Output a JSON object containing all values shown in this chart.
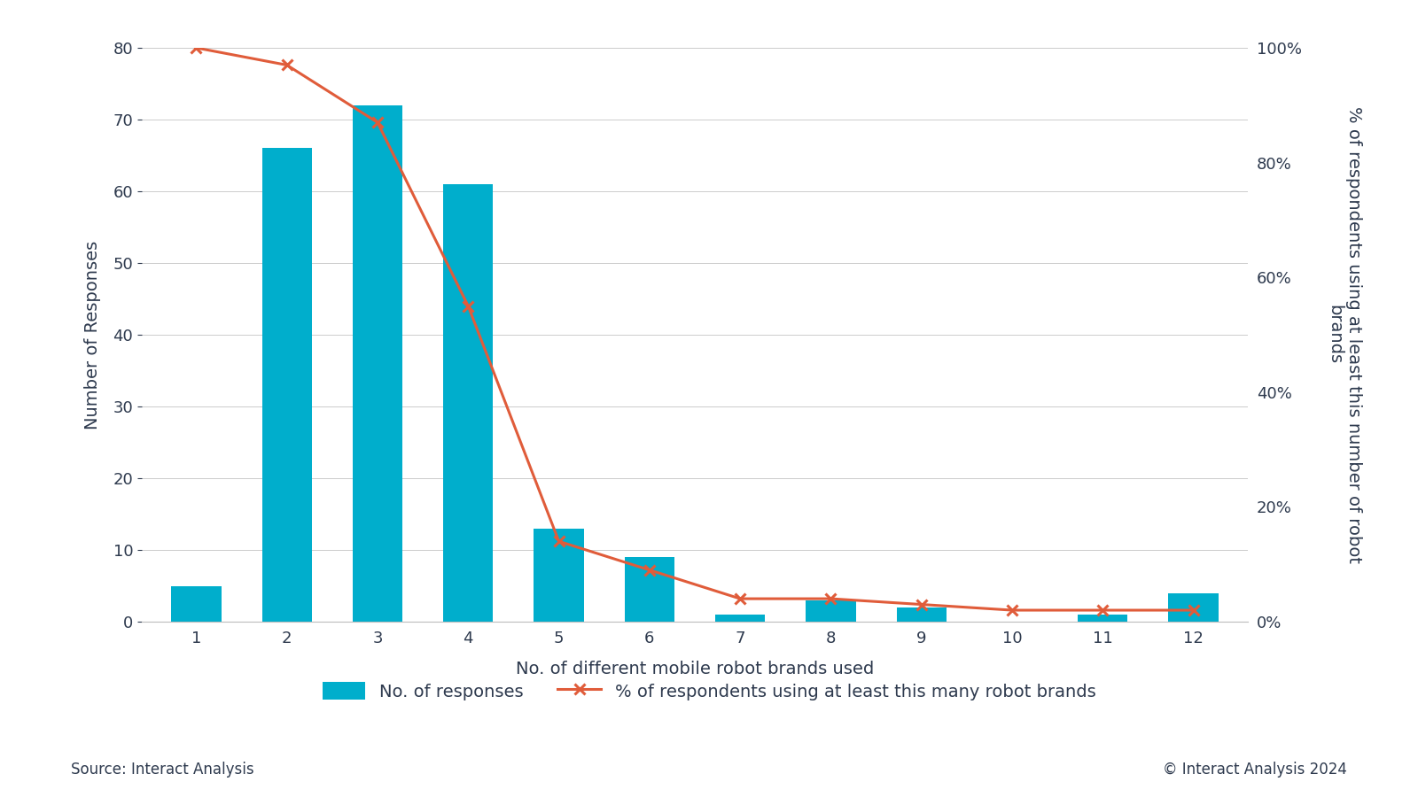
{
  "categories": [
    1,
    2,
    3,
    4,
    5,
    6,
    7,
    8,
    9,
    10,
    11,
    12
  ],
  "bar_values": [
    5,
    66,
    72,
    61,
    13,
    9,
    1,
    3,
    2,
    0,
    1,
    4
  ],
  "line_values": [
    1.0,
    0.97,
    0.87,
    0.55,
    0.14,
    0.09,
    0.04,
    0.04,
    0.03,
    0.02,
    0.02,
    0.02
  ],
  "bar_color": "#00AECC",
  "line_color": "#E05C3A",
  "background_color": "#FFFFFF",
  "text_color": "#2E3A4E",
  "ylabel_left": "Number of Responses",
  "ylabel_right": "% of respondents using at least this number of robot\nbrands",
  "xlabel": "No. of different mobile robot brands used",
  "ylim_left": [
    0,
    80
  ],
  "ylim_right": [
    0,
    1.0
  ],
  "yticks_left": [
    0,
    10,
    20,
    30,
    40,
    50,
    60,
    70,
    80
  ],
  "yticks_right": [
    0.0,
    0.2,
    0.4,
    0.6,
    0.8,
    1.0
  ],
  "ytick_right_labels": [
    "0%",
    "20%",
    "40%",
    "60%",
    "80%",
    "100%"
  ],
  "legend_bar_label": "No. of responses",
  "legend_line_label": "% of respondents using at least this many robot brands",
  "source_text": "Source: Interact Analysis",
  "copyright_text": "© Interact Analysis 2024",
  "grid_color": "#CCCCCC",
  "font_size": 14,
  "axis_label_fontsize": 14,
  "tick_fontsize": 13
}
